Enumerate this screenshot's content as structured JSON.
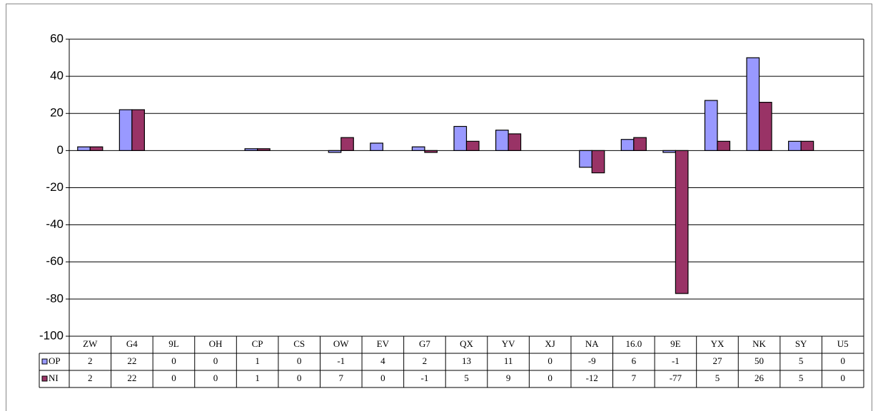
{
  "chart_data": {
    "type": "bar",
    "categories": [
      "ZW",
      "G4",
      "9L",
      "OH",
      "CP",
      "CS",
      "OW",
      "EV",
      "G7",
      "QX",
      "YV",
      "XJ",
      "NA",
      "16.0",
      "9E",
      "YX",
      "NK",
      "SY",
      "U5"
    ],
    "series": [
      {
        "name": "OP",
        "color": "#9999ff",
        "values": [
          2,
          22,
          0,
          0,
          1,
          0,
          -1,
          4,
          2,
          13,
          11,
          0,
          -9,
          6,
          -1,
          27,
          50,
          5,
          0
        ]
      },
      {
        "name": "NI",
        "color": "#993366",
        "values": [
          2,
          22,
          0,
          0,
          1,
          0,
          7,
          0,
          -1,
          5,
          9,
          0,
          -12,
          7,
          -77,
          5,
          26,
          5,
          0
        ]
      }
    ],
    "ylim": [
      -100,
      60
    ],
    "yticks": [
      -100,
      -80,
      -60,
      -40,
      -20,
      0,
      20,
      40,
      60
    ],
    "grid": true,
    "data_table": true
  }
}
